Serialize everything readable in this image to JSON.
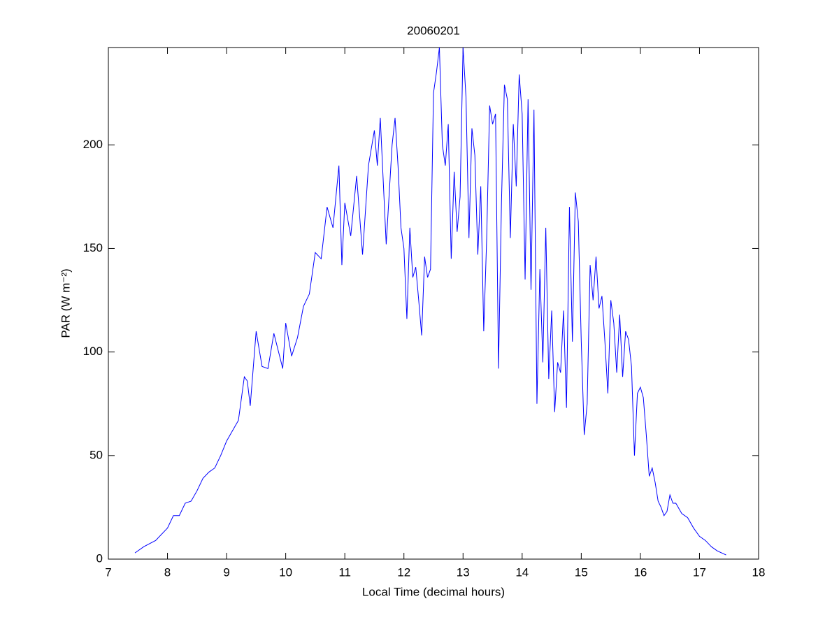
{
  "chart_data": {
    "type": "line",
    "title": "20060201",
    "x_label": "Local Time (decimal hours)",
    "y_label": "PAR (W m⁻²)",
    "xlim": [
      7,
      18
    ],
    "ylim": [
      0,
      247
    ],
    "xticks": [
      7,
      8,
      9,
      10,
      11,
      12,
      13,
      14,
      15,
      16,
      17,
      18
    ],
    "yticks": [
      0,
      50,
      100,
      150,
      200
    ],
    "grid": false,
    "series": [
      {
        "color": "#0000ff",
        "x": [
          7.45,
          7.6,
          7.8,
          8.0,
          8.1,
          8.2,
          8.3,
          8.4,
          8.5,
          8.6,
          8.7,
          8.8,
          8.9,
          9.0,
          9.1,
          9.2,
          9.3,
          9.35,
          9.4,
          9.5,
          9.6,
          9.7,
          9.8,
          9.95,
          10.0,
          10.1,
          10.2,
          10.3,
          10.4,
          10.5,
          10.6,
          10.7,
          10.8,
          10.9,
          10.95,
          11.0,
          11.1,
          11.2,
          11.3,
          11.4,
          11.5,
          11.55,
          11.6,
          11.7,
          11.8,
          11.85,
          11.9,
          11.95,
          12.0,
          12.05,
          12.1,
          12.15,
          12.2,
          12.25,
          12.3,
          12.35,
          12.4,
          12.45,
          12.5,
          12.55,
          12.6,
          12.65,
          12.7,
          12.75,
          12.8,
          12.85,
          12.9,
          12.95,
          13.0,
          13.05,
          13.1,
          13.15,
          13.2,
          13.25,
          13.3,
          13.35,
          13.4,
          13.45,
          13.5,
          13.55,
          13.6,
          13.65,
          13.7,
          13.75,
          13.8,
          13.85,
          13.9,
          13.95,
          14.0,
          14.05,
          14.1,
          14.15,
          14.2,
          14.25,
          14.3,
          14.35,
          14.4,
          14.45,
          14.5,
          14.55,
          14.6,
          14.65,
          14.7,
          14.75,
          14.8,
          14.85,
          14.9,
          14.95,
          15.0,
          15.05,
          15.1,
          15.15,
          15.2,
          15.25,
          15.3,
          15.35,
          15.4,
          15.45,
          15.5,
          15.55,
          15.6,
          15.65,
          15.7,
          15.75,
          15.8,
          15.85,
          15.9,
          15.95,
          16.0,
          16.05,
          16.1,
          16.15,
          16.2,
          16.25,
          16.3,
          16.35,
          16.4,
          16.45,
          16.5,
          16.55,
          16.6,
          16.7,
          16.8,
          16.9,
          17.0,
          17.1,
          17.2,
          17.3,
          17.45
        ],
        "values": [
          3,
          6,
          9,
          15,
          21,
          21,
          27,
          28,
          33,
          39,
          42,
          44,
          50,
          57,
          62,
          67,
          88,
          86,
          74,
          110,
          93,
          92,
          109,
          92,
          114,
          98,
          107,
          122,
          128,
          148,
          145,
          170,
          160,
          190,
          142,
          172,
          156,
          185,
          147,
          190,
          207,
          190,
          213,
          152,
          200,
          213,
          190,
          160,
          150,
          116,
          160,
          136,
          141,
          125,
          108,
          146,
          136,
          140,
          225,
          235,
          247,
          200,
          190,
          210,
          145,
          187,
          158,
          175,
          247,
          223,
          155,
          208,
          195,
          147,
          180,
          110,
          155,
          219,
          210,
          215,
          92,
          172,
          229,
          222,
          155,
          210,
          180,
          234,
          215,
          135,
          222,
          130,
          217,
          75,
          140,
          95,
          160,
          87,
          120,
          71,
          95,
          90,
          120,
          73,
          170,
          105,
          177,
          163,
          105,
          60,
          75,
          142,
          125,
          146,
          121,
          127,
          105,
          80,
          125,
          114,
          90,
          118,
          88,
          110,
          106,
          93,
          50,
          80,
          83,
          78,
          60,
          40,
          44,
          37,
          28,
          25,
          21,
          23,
          31,
          27,
          27,
          22,
          20,
          15,
          11,
          9,
          6,
          4,
          2
        ]
      }
    ]
  }
}
